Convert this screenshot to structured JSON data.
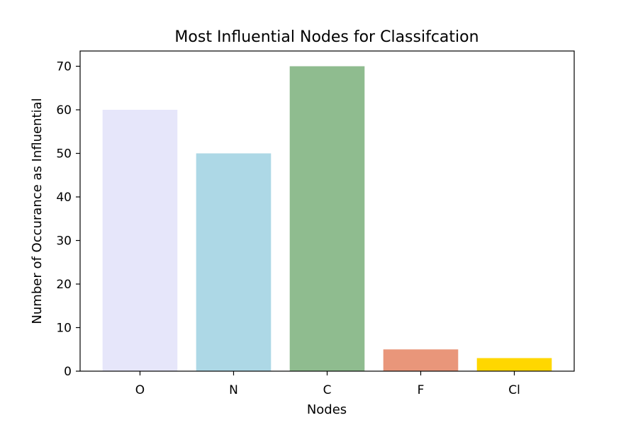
{
  "chart_data": {
    "type": "bar",
    "title": "Most Influential Nodes for Classifcation",
    "xlabel": "Nodes",
    "ylabel": "Number of Occurance as Influential",
    "categories": [
      "O",
      "N",
      "C",
      "F",
      "Cl"
    ],
    "values": [
      60,
      50,
      70,
      5,
      3
    ],
    "colors": [
      "#e6e6fa",
      "#add8e6",
      "#8fbc8f",
      "#e9967a",
      "#ffd700"
    ],
    "ylim": [
      0,
      73.5
    ],
    "yticks": [
      0,
      10,
      20,
      30,
      40,
      50,
      60,
      70
    ],
    "grid": false,
    "legend": "none"
  }
}
